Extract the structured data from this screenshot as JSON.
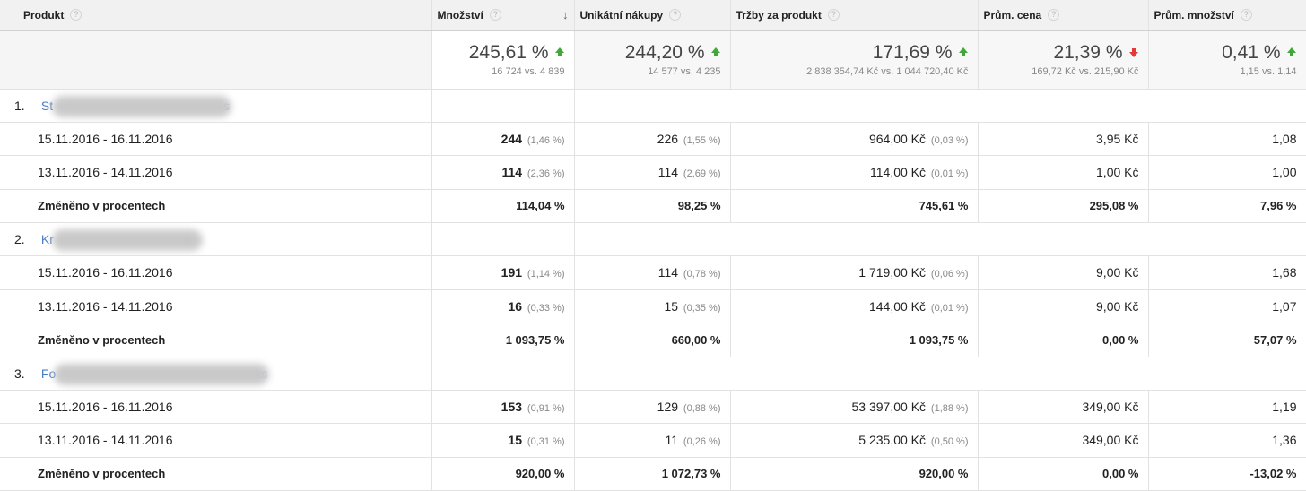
{
  "columns": [
    {
      "label": "Produkt"
    },
    {
      "label": "Množství"
    },
    {
      "label": "Unikátní nákupy"
    },
    {
      "label": "Tržby za produkt"
    },
    {
      "label": "Prům. cena"
    },
    {
      "label": "Prům. množství"
    }
  ],
  "help_glyph": "?",
  "sort_glyph": "↓",
  "summary": [
    {
      "main": "245,61 %",
      "trend": "up",
      "sub": "16 724 vs. 4 839"
    },
    {
      "main": "244,20 %",
      "trend": "up",
      "sub": "14 577 vs. 4 235"
    },
    {
      "main": "171,69 %",
      "trend": "up",
      "sub": "2 838 354,74 Kč vs. 1 044 720,40 Kč"
    },
    {
      "main": "21,39 %",
      "trend": "down",
      "sub": "169,72 Kč vs. 215,90 Kč"
    },
    {
      "main": "0,41 %",
      "trend": "up",
      "sub": "1,15 vs. 1,14"
    }
  ],
  "products": [
    {
      "index": "1.",
      "name_start": "St",
      "name_end": "s",
      "rows": [
        {
          "label": "15.11.2016 - 16.11.2016",
          "qty": "244",
          "qty_pct": "(1,46 %)",
          "uniq": "226",
          "uniq_pct": "(1,55 %)",
          "rev": "964,00 Kč",
          "rev_pct": "(0,03 %)",
          "price": "3,95 Kč",
          "avg_qty": "1,08"
        },
        {
          "label": "13.11.2016 - 14.11.2016",
          "qty": "114",
          "qty_pct": "(2,36 %)",
          "uniq": "114",
          "uniq_pct": "(2,69 %)",
          "rev": "114,00 Kč",
          "rev_pct": "(0,01 %)",
          "price": "1,00 Kč",
          "avg_qty": "1,00"
        }
      ],
      "change": {
        "label": "Změněno v procentech",
        "qty": "114,04 %",
        "uniq": "98,25 %",
        "rev": "745,61 %",
        "price": "295,08 %",
        "avg_qty": "7,96 %"
      }
    },
    {
      "index": "2.",
      "name_start": "Kr",
      "name_end": "é",
      "rows": [
        {
          "label": "15.11.2016 - 16.11.2016",
          "qty": "191",
          "qty_pct": "(1,14 %)",
          "uniq": "114",
          "uniq_pct": "(0,78 %)",
          "rev": "1 719,00 Kč",
          "rev_pct": "(0,06 %)",
          "price": "9,00 Kč",
          "avg_qty": "1,68"
        },
        {
          "label": "13.11.2016 - 14.11.2016",
          "qty": "16",
          "qty_pct": "(0,33 %)",
          "uniq": "15",
          "uniq_pct": "(0,35 %)",
          "rev": "144,00 Kč",
          "rev_pct": "(0,01 %)",
          "price": "9,00 Kč",
          "avg_qty": "1,07"
        }
      ],
      "change": {
        "label": "Změněno v procentech",
        "qty": "1 093,75 %",
        "uniq": "660,00 %",
        "rev": "1 093,75 %",
        "price": "0,00 %",
        "avg_qty": "57,07 %"
      }
    },
    {
      "index": "3.",
      "name_start": "Fo",
      "name_end": "ks",
      "rows": [
        {
          "label": "15.11.2016 - 16.11.2016",
          "qty": "153",
          "qty_pct": "(0,91 %)",
          "uniq": "129",
          "uniq_pct": "(0,88 %)",
          "rev": "53 397,00 Kč",
          "rev_pct": "(1,88 %)",
          "price": "349,00 Kč",
          "avg_qty": "1,19"
        },
        {
          "label": "13.11.2016 - 14.11.2016",
          "qty": "15",
          "qty_pct": "(0,31 %)",
          "uniq": "11",
          "uniq_pct": "(0,26 %)",
          "rev": "5 235,00 Kč",
          "rev_pct": "(0,50 %)",
          "price": "349,00 Kč",
          "avg_qty": "1,36"
        }
      ],
      "change": {
        "label": "Změněno v procentech",
        "qty": "920,00 %",
        "uniq": "1 072,73 %",
        "rev": "920,00 %",
        "price": "0,00 %",
        "avg_qty": "-13,02 %"
      }
    }
  ]
}
